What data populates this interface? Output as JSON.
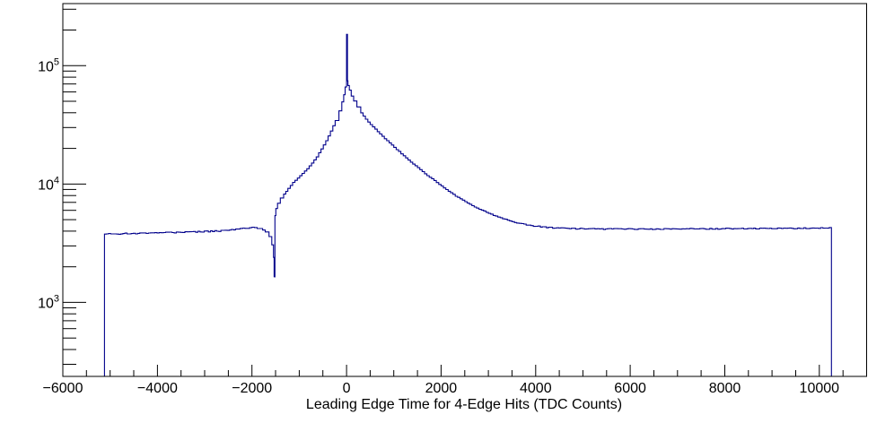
{
  "page": {
    "background_color": "#ffffff"
  },
  "chart_data": {
    "type": "line",
    "style": "root-histogram-step",
    "title": "",
    "xlabel": "Leading Edge Time for 4-Edge Hits (TDC Counts)",
    "ylabel": "",
    "yscale": "log",
    "grid": "off",
    "legend": "none",
    "line_color": "#00008b",
    "axis_color": "#000000",
    "xlim": [
      -6000,
      11000
    ],
    "ylim": [
      237,
      334700
    ],
    "x_major_ticks": [
      -6000,
      -4000,
      -2000,
      0,
      2000,
      4000,
      6000,
      8000,
      10000
    ],
    "x_tick_labels": [
      "−6000",
      "−4000",
      "−2000",
      "0",
      "2000",
      "4000",
      "6000",
      "8000",
      "10000"
    ],
    "x_minor_step": 500,
    "y_major_ticks": [
      1000,
      10000,
      100000
    ],
    "y_tick_labels": [
      {
        "base": "10",
        "exp": "3",
        "value": 1000
      },
      {
        "base": "10",
        "exp": "4",
        "value": 10000
      },
      {
        "base": "10",
        "exp": "5",
        "value": 100000
      }
    ],
    "data_start_x": -5120,
    "data_end_x": 10256,
    "spike": {
      "x": 0,
      "top": 184000
    },
    "notch": {
      "x": -1530,
      "bottom": 1650
    },
    "peak": {
      "x": 0,
      "value": 74500
    },
    "left_plateau_level": 3800,
    "right_plateau_level": 4200,
    "points": [
      [
        -5120,
        3780
      ],
      [
        -4600,
        3820
      ],
      [
        -4100,
        3860
      ],
      [
        -3600,
        3900
      ],
      [
        -3100,
        3960
      ],
      [
        -2700,
        4020
      ],
      [
        -2350,
        4120
      ],
      [
        -2100,
        4250
      ],
      [
        -1950,
        4300
      ],
      [
        -1830,
        4200
      ],
      [
        -1720,
        3950
      ],
      [
        -1640,
        3600
      ],
      [
        -1580,
        3050
      ],
      [
        -1545,
        2400
      ],
      [
        -1532,
        1650
      ],
      [
        -1522,
        1650
      ],
      [
        -1515,
        5400
      ],
      [
        -1495,
        6200
      ],
      [
        -1460,
        6900
      ],
      [
        -1400,
        7600
      ],
      [
        -1330,
        8200
      ],
      [
        -1240,
        9200
      ],
      [
        -1140,
        10300
      ],
      [
        -1040,
        11200
      ],
      [
        -940,
        12300
      ],
      [
        -840,
        13500
      ],
      [
        -740,
        15000
      ],
      [
        -640,
        17000
      ],
      [
        -540,
        19800
      ],
      [
        -440,
        23200
      ],
      [
        -340,
        28000
      ],
      [
        -240,
        34500
      ],
      [
        -160,
        41500
      ],
      [
        -100,
        49500
      ],
      [
        -60,
        57000
      ],
      [
        -30,
        66000
      ],
      [
        0,
        74500
      ],
      [
        30,
        68000
      ],
      [
        60,
        62000
      ],
      [
        100,
        55500
      ],
      [
        150,
        50500
      ],
      [
        220,
        45000
      ],
      [
        300,
        40000
      ],
      [
        400,
        35200
      ],
      [
        500,
        31800
      ],
      [
        600,
        29000
      ],
      [
        700,
        26400
      ],
      [
        800,
        24200
      ],
      [
        950,
        21300
      ],
      [
        1100,
        18800
      ],
      [
        1250,
        16600
      ],
      [
        1400,
        14800
      ],
      [
        1550,
        13200
      ],
      [
        1700,
        11800
      ],
      [
        1850,
        10700
      ],
      [
        2000,
        9600
      ],
      [
        2150,
        8700
      ],
      [
        2300,
        7900
      ],
      [
        2500,
        7100
      ],
      [
        2700,
        6400
      ],
      [
        2900,
        5900
      ],
      [
        3100,
        5450
      ],
      [
        3300,
        5100
      ],
      [
        3500,
        4800
      ],
      [
        3700,
        4600
      ],
      [
        3900,
        4450
      ],
      [
        4100,
        4350
      ],
      [
        4400,
        4260
      ],
      [
        4800,
        4200
      ],
      [
        5300,
        4170
      ],
      [
        6000,
        4160
      ],
      [
        6800,
        4170
      ],
      [
        7600,
        4190
      ],
      [
        8400,
        4200
      ],
      [
        9200,
        4220
      ],
      [
        9800,
        4240
      ],
      [
        10256,
        4250
      ]
    ],
    "noise_regions": [
      {
        "from": -5120,
        "to": -1780,
        "amp": 1.4
      },
      {
        "from": -1780,
        "to": 3500,
        "amp": 0.45
      },
      {
        "from": 3500,
        "to": 10256,
        "amp": 1.2
      }
    ]
  }
}
